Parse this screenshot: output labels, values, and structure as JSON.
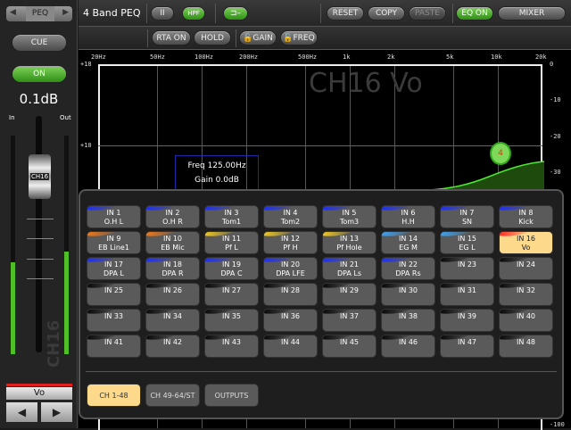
{
  "left": {
    "eq_type": "PEQ",
    "cue": "CUE",
    "on": "ON",
    "level": "0.1dB",
    "in_label": "In",
    "out_label": "Out",
    "fader_cap": "CH16",
    "channel_watermark": "CH16",
    "channel_name": "Vo",
    "in_meter_level": 0.42,
    "out_meter_level": 0.47,
    "channel_color": "#e0201c"
  },
  "toolbar": {
    "title": "4 Band PEQ",
    "type_btn": "II",
    "hpf": "HPF",
    "reset": "RESET",
    "copy": "COPY",
    "paste": "PASTE",
    "eq_on": "EQ ON",
    "mixer": "MIXER",
    "rta_on": "RTA ON",
    "hold": "HOLD",
    "gain_lock": "GAIN",
    "freq_lock": "FREQ"
  },
  "graph": {
    "watermark": "CH16 Vo",
    "freq_labels": [
      "20Hz",
      "50Hz",
      "100Hz",
      "200Hz",
      "500Hz",
      "1k",
      "2k",
      "5k",
      "10k",
      "20k"
    ],
    "gain_labels": [
      "+18",
      "+10"
    ],
    "rta_labels": [
      "0",
      "-10",
      "-20",
      "-30",
      "-100"
    ],
    "info": {
      "freq": "Freq  125.00Hz",
      "gain": "Gain 0.0dB"
    },
    "band_marker": "4"
  },
  "selector": {
    "channels": [
      {
        "id": "IN 1",
        "name": "O.H L",
        "color": "#1a2cff"
      },
      {
        "id": "IN 2",
        "name": "O.H R",
        "color": "#1a2cff"
      },
      {
        "id": "IN 3",
        "name": "Tom1",
        "color": "#1a2cff"
      },
      {
        "id": "IN 4",
        "name": "Tom2",
        "color": "#1a2cff"
      },
      {
        "id": "IN 5",
        "name": "Tom3",
        "color": "#1a2cff"
      },
      {
        "id": "IN 6",
        "name": "H.H",
        "color": "#1a2cff"
      },
      {
        "id": "IN 7",
        "name": "SN",
        "color": "#1a2cff"
      },
      {
        "id": "IN 8",
        "name": "Kick",
        "color": "#1a2cff"
      },
      {
        "id": "IN 9",
        "name": "EB Line1",
        "color": "#ff7a10"
      },
      {
        "id": "IN 10",
        "name": "EB Mic",
        "color": "#ff7a10"
      },
      {
        "id": "IN 11",
        "name": "Pf L",
        "color": "#ffd21a"
      },
      {
        "id": "IN 12",
        "name": "Pf H",
        "color": "#ffd21a"
      },
      {
        "id": "IN 13",
        "name": "Pf Hole",
        "color": "#ffd21a"
      },
      {
        "id": "IN 14",
        "name": "EG M",
        "color": "#3aa8ff"
      },
      {
        "id": "IN 15",
        "name": "EG L",
        "color": "#3aa8ff"
      },
      {
        "id": "IN 16",
        "name": "Vo",
        "color": "#ff1a1a",
        "selected": true
      },
      {
        "id": "IN 17",
        "name": "DPA L",
        "color": "#1a2cff"
      },
      {
        "id": "IN 18",
        "name": "DPA R",
        "color": "#1a2cff"
      },
      {
        "id": "IN 19",
        "name": "DPA C",
        "color": "#1a2cff"
      },
      {
        "id": "IN 20",
        "name": "DPA LFE",
        "color": "#1a2cff"
      },
      {
        "id": "IN 21",
        "name": "DPA Ls",
        "color": "#1a2cff"
      },
      {
        "id": "IN 22",
        "name": "DPA Rs",
        "color": "#1a2cff"
      },
      {
        "id": "IN 23",
        "name": "",
        "color": "#000"
      },
      {
        "id": "IN 24",
        "name": "",
        "color": "#000"
      },
      {
        "id": "IN 25",
        "name": "",
        "color": "#000"
      },
      {
        "id": "IN 26",
        "name": "",
        "color": "#000"
      },
      {
        "id": "IN 27",
        "name": "",
        "color": "#000"
      },
      {
        "id": "IN 28",
        "name": "",
        "color": "#000"
      },
      {
        "id": "IN 29",
        "name": "",
        "color": "#000"
      },
      {
        "id": "IN 30",
        "name": "",
        "color": "#000"
      },
      {
        "id": "IN 31",
        "name": "",
        "color": "#000"
      },
      {
        "id": "IN 32",
        "name": "",
        "color": "#000"
      },
      {
        "id": "IN 33",
        "name": "",
        "color": "#000"
      },
      {
        "id": "IN 34",
        "name": "",
        "color": "#000"
      },
      {
        "id": "IN 35",
        "name": "",
        "color": "#000"
      },
      {
        "id": "IN 36",
        "name": "",
        "color": "#000"
      },
      {
        "id": "IN 37",
        "name": "",
        "color": "#000"
      },
      {
        "id": "IN 38",
        "name": "",
        "color": "#000"
      },
      {
        "id": "IN 39",
        "name": "",
        "color": "#000"
      },
      {
        "id": "IN 40",
        "name": "",
        "color": "#000"
      },
      {
        "id": "IN 41",
        "name": "",
        "color": "#000"
      },
      {
        "id": "IN 42",
        "name": "",
        "color": "#000"
      },
      {
        "id": "IN 43",
        "name": "",
        "color": "#000"
      },
      {
        "id": "IN 44",
        "name": "",
        "color": "#000"
      },
      {
        "id": "IN 45",
        "name": "",
        "color": "#000"
      },
      {
        "id": "IN 46",
        "name": "",
        "color": "#000"
      },
      {
        "id": "IN 47",
        "name": "",
        "color": "#000"
      },
      {
        "id": "IN 48",
        "name": "",
        "color": "#000"
      }
    ],
    "tabs": [
      {
        "label": "CH 1-48",
        "selected": true
      },
      {
        "label": "CH 49-64/ST"
      },
      {
        "label": "OUTPUTS"
      }
    ]
  }
}
